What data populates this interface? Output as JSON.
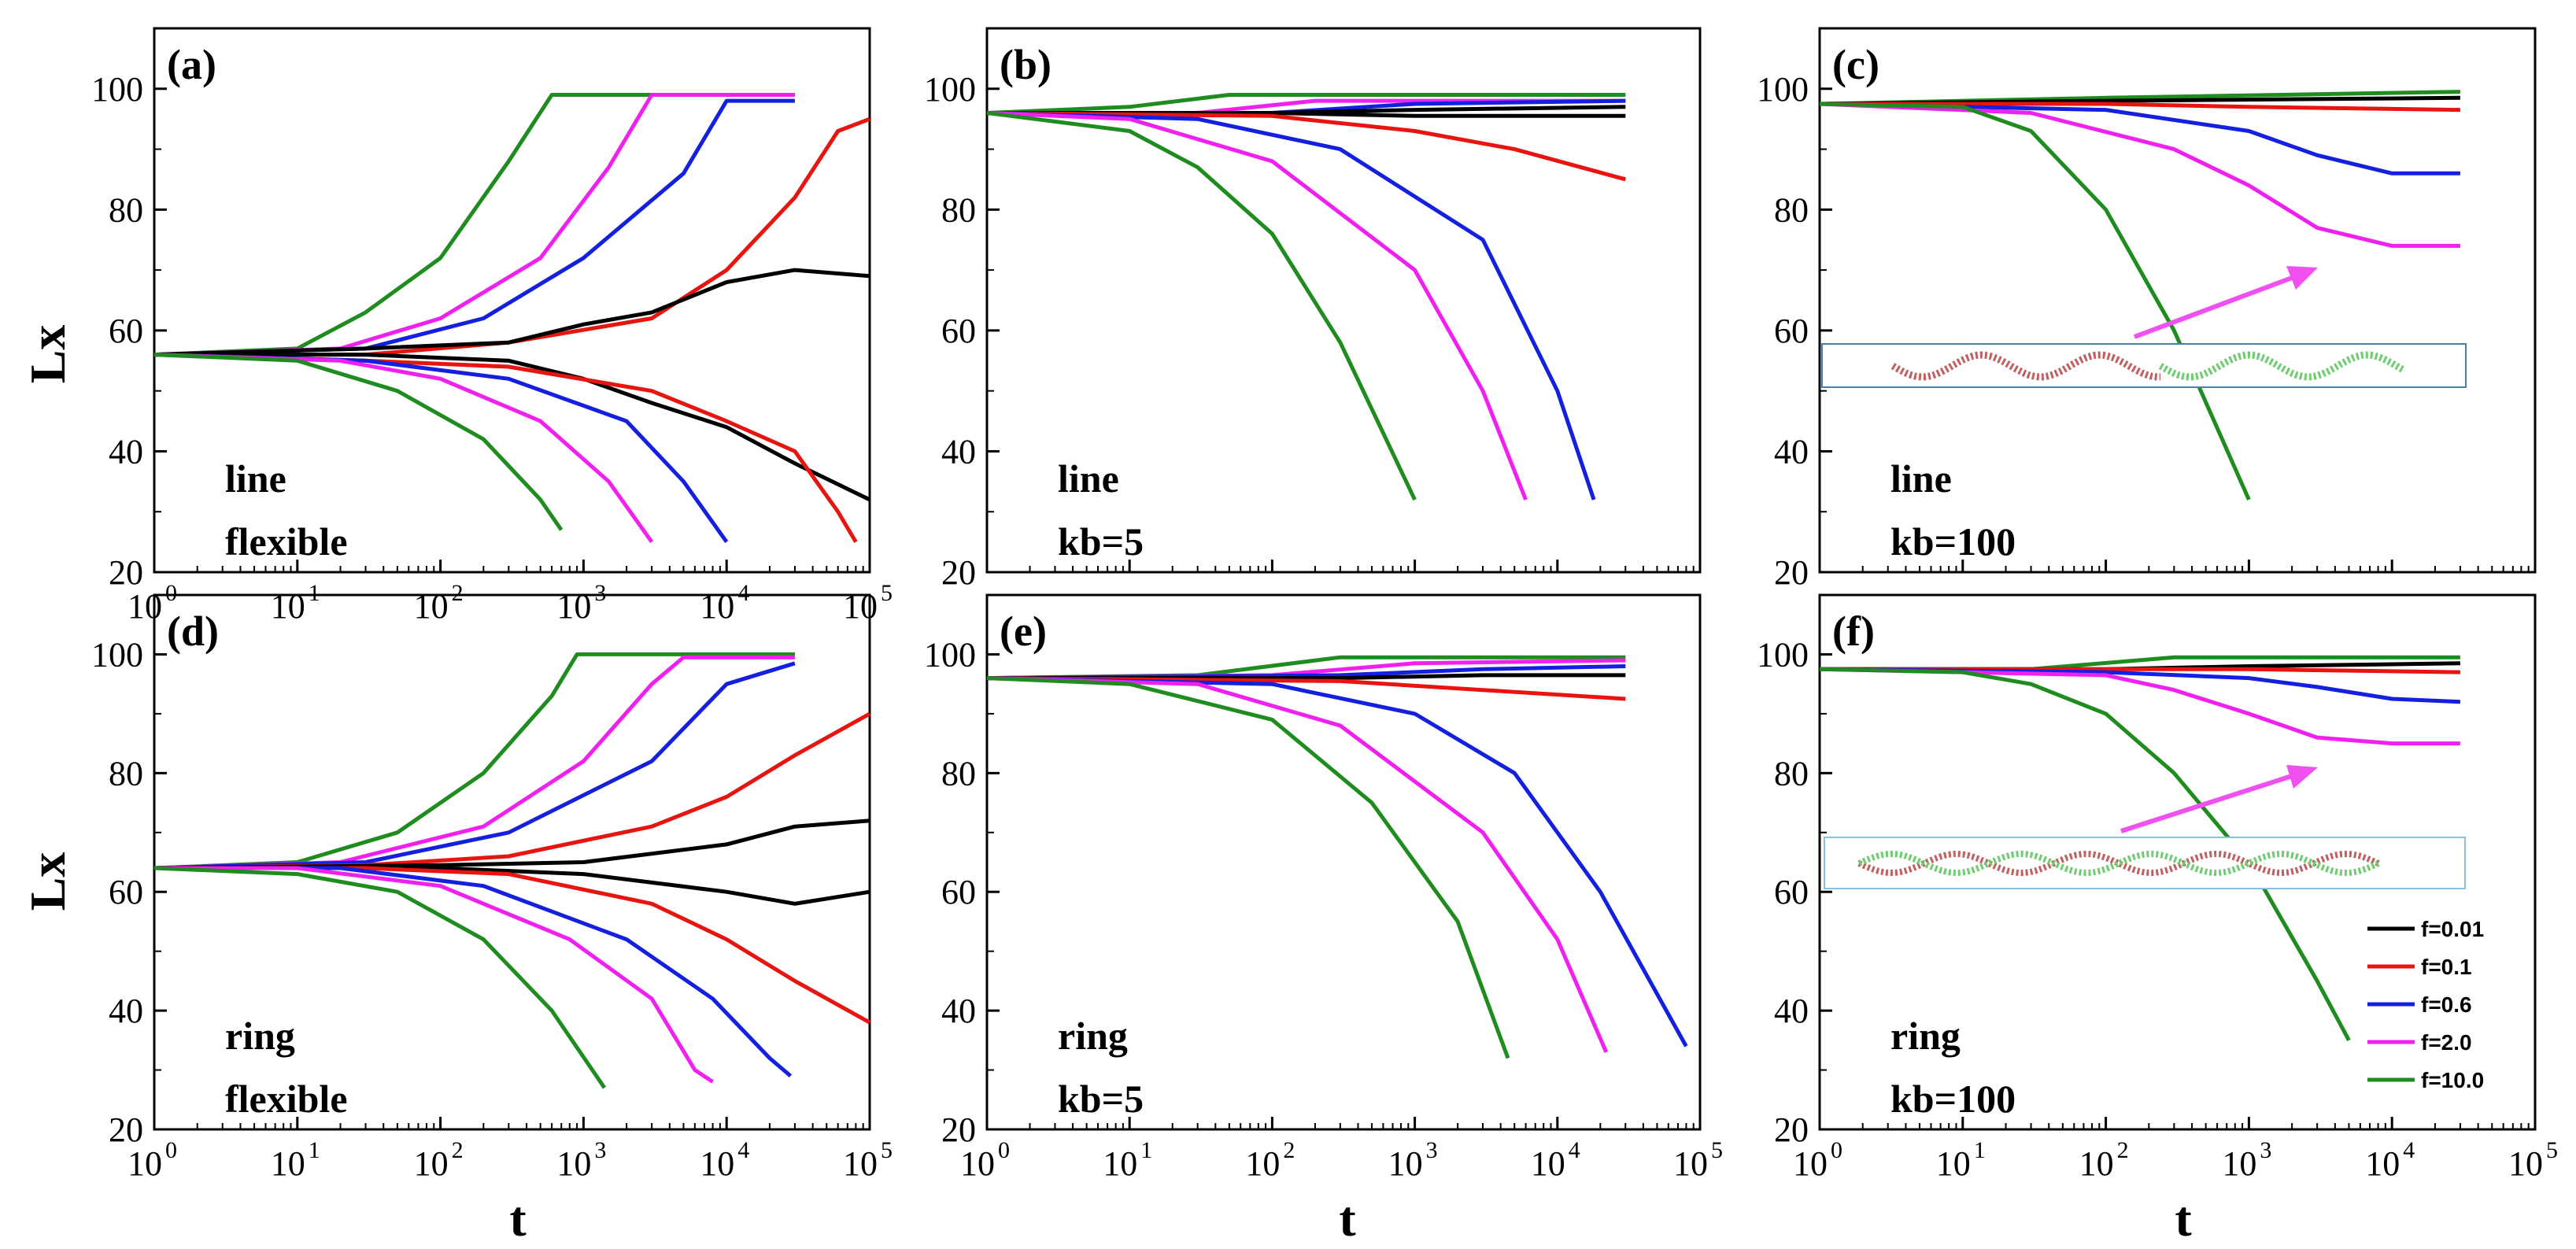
{
  "figure": {
    "y_axis_title": "Lx",
    "x_axis_title": "t",
    "series_colors": {
      "f=0.01": "#000000",
      "f=0.1": "#e8140f",
      "f=0.6": "#1420e0",
      "f=2.0": "#f020f0",
      "f=10.0": "#1f8c1f"
    },
    "legend": {
      "placement": "panel-f-lower-right",
      "entries": [
        {
          "label": "f=0.01",
          "color": "#000000"
        },
        {
          "label": "f=0.1",
          "color": "#e8140f"
        },
        {
          "label": "f=0.6",
          "color": "#1420e0"
        },
        {
          "label": "f=2.0",
          "color": "#f020f0"
        },
        {
          "label": "f=10.0",
          "color": "#1f8c1f"
        }
      ]
    }
  },
  "chart_data": [
    {
      "panel": "a",
      "tag": "(a)",
      "note_lines": [
        "line",
        "flexible"
      ],
      "type": "line",
      "xscale": "log",
      "xlim": [
        1,
        100000
      ],
      "ylim": [
        20,
        110
      ],
      "yticks": [
        20,
        40,
        60,
        80,
        100
      ],
      "xtick_exponents": [
        "0",
        "1",
        "2",
        "3",
        "4",
        "5"
      ],
      "series": [
        {
          "label": "f=10.0",
          "color": "#1f8c1f",
          "x": [
            1,
            10,
            30,
            100,
            300,
            600,
            30000
          ],
          "y": [
            56,
            57,
            63,
            72,
            88,
            99,
            99
          ]
        },
        {
          "label": "f=2.0",
          "color": "#f020f0",
          "x": [
            1,
            20,
            100,
            500,
            1500,
            3000,
            30000
          ],
          "y": [
            56,
            57,
            62,
            72,
            87,
            99,
            99
          ]
        },
        {
          "label": "f=0.6",
          "color": "#1420e0",
          "x": [
            1,
            30,
            200,
            1000,
            5000,
            10000,
            30000
          ],
          "y": [
            56,
            57,
            62,
            72,
            86,
            98,
            98
          ]
        },
        {
          "label": "f=0.1",
          "color": "#e8140f",
          "x": [
            1,
            30,
            300,
            3000,
            10000,
            30000,
            60000,
            100000
          ],
          "y": [
            56,
            56,
            58,
            62,
            70,
            82,
            93,
            95
          ]
        },
        {
          "label": "f=0.01",
          "color": "#000000",
          "x": [
            1,
            30,
            300,
            1000,
            3000,
            10000,
            30000,
            100000
          ],
          "y": [
            56,
            57,
            58,
            61,
            63,
            68,
            70,
            69
          ]
        },
        {
          "label": "f=0.01",
          "color": "#000000",
          "x": [
            1,
            30,
            300,
            1000,
            3000,
            10000,
            30000,
            100000
          ],
          "y": [
            56,
            56,
            55,
            52,
            48,
            44,
            38,
            32
          ]
        },
        {
          "label": "f=0.1",
          "color": "#e8140f",
          "x": [
            1,
            30,
            300,
            3000,
            10000,
            30000,
            60000,
            80000
          ],
          "y": [
            56,
            55,
            54,
            50,
            45,
            40,
            30,
            25
          ]
        },
        {
          "label": "f=0.6",
          "color": "#1420e0",
          "x": [
            1,
            30,
            300,
            2000,
            5000,
            10000
          ],
          "y": [
            56,
            55,
            52,
            45,
            35,
            25
          ]
        },
        {
          "label": "f=2.0",
          "color": "#f020f0",
          "x": [
            1,
            20,
            100,
            500,
            1500,
            3000
          ],
          "y": [
            56,
            55,
            52,
            45,
            35,
            25
          ]
        },
        {
          "label": "f=10.0",
          "color": "#1f8c1f",
          "x": [
            1,
            10,
            50,
            200,
            500,
            700
          ],
          "y": [
            56,
            55,
            50,
            42,
            32,
            27
          ]
        }
      ]
    },
    {
      "panel": "b",
      "tag": "(b)",
      "note_lines": [
        "line",
        "kb=5"
      ],
      "type": "line",
      "xscale": "log",
      "xlim": [
        1,
        100000
      ],
      "ylim": [
        20,
        110
      ],
      "yticks": [
        20,
        40,
        60,
        80,
        100
      ],
      "xtick_exponents": [],
      "series": [
        {
          "label": "f=10.0",
          "color": "#1f8c1f",
          "x": [
            1,
            10,
            50,
            30000
          ],
          "y": [
            96,
            97,
            99,
            99
          ]
        },
        {
          "label": "f=2.0",
          "color": "#f020f0",
          "x": [
            1,
            30,
            200,
            30000
          ],
          "y": [
            96,
            96,
            98,
            98
          ]
        },
        {
          "label": "f=0.6",
          "color": "#1420e0",
          "x": [
            1,
            100,
            1000,
            30000
          ],
          "y": [
            96,
            96,
            97.5,
            98
          ]
        },
        {
          "label": "f=0.01",
          "color": "#000000",
          "x": [
            1,
            100,
            1000,
            30000
          ],
          "y": [
            96,
            96,
            96.5,
            97
          ]
        },
        {
          "label": "f=0.01",
          "color": "#000000",
          "x": [
            1,
            100,
            1000,
            30000
          ],
          "y": [
            96,
            96,
            95.5,
            95.5
          ]
        },
        {
          "label": "f=0.1",
          "color": "#e8140f",
          "x": [
            1,
            100,
            1000,
            5000,
            30000
          ],
          "y": [
            96,
            95.5,
            93,
            90,
            85
          ]
        },
        {
          "label": "f=0.6",
          "color": "#1420e0",
          "x": [
            1,
            30,
            300,
            3000,
            10000,
            18000
          ],
          "y": [
            96,
            95,
            90,
            75,
            50,
            32
          ]
        },
        {
          "label": "f=2.0",
          "color": "#f020f0",
          "x": [
            1,
            10,
            100,
            1000,
            3000,
            6000
          ],
          "y": [
            96,
            95,
            88,
            70,
            50,
            32
          ]
        },
        {
          "label": "f=10.0",
          "color": "#1f8c1f",
          "x": [
            1,
            10,
            30,
            100,
            300,
            1000
          ],
          "y": [
            96,
            93,
            87,
            76,
            58,
            32
          ]
        }
      ]
    },
    {
      "panel": "c",
      "tag": "(c)",
      "note_lines": [
        "line",
        "kb=100"
      ],
      "type": "line",
      "xscale": "log",
      "xlim": [
        1,
        100000
      ],
      "ylim": [
        20,
        110
      ],
      "yticks": [
        20,
        40,
        60,
        80,
        100
      ],
      "xtick_exponents": [],
      "series": [
        {
          "label": "f=10.0",
          "color": "#1f8c1f",
          "x": [
            1,
            100,
            30000
          ],
          "y": [
            97.5,
            98.5,
            99.5
          ]
        },
        {
          "label": "f=0.01",
          "color": "#000000",
          "x": [
            1,
            100,
            30000
          ],
          "y": [
            97.5,
            98,
            98.5
          ]
        },
        {
          "label": "f=0.1",
          "color": "#e8140f",
          "x": [
            1,
            100,
            1000,
            30000
          ],
          "y": [
            97.5,
            97.5,
            97,
            96.5
          ]
        },
        {
          "label": "f=0.6",
          "color": "#1420e0",
          "x": [
            1,
            100,
            1000,
            3000,
            10000,
            30000
          ],
          "y": [
            97.5,
            96.5,
            93,
            89,
            86,
            86
          ]
        },
        {
          "label": "f=2.0",
          "color": "#f020f0",
          "x": [
            1,
            30,
            300,
            1000,
            3000,
            10000,
            30000
          ],
          "y": [
            97.5,
            96,
            90,
            84,
            77,
            74,
            74
          ]
        },
        {
          "label": "f=10.0",
          "color": "#1f8c1f",
          "x": [
            1,
            10,
            30,
            100,
            300,
            1000
          ],
          "y": [
            97.5,
            97,
            93,
            80,
            60,
            32
          ]
        }
      ]
    },
    {
      "panel": "d",
      "tag": "(d)",
      "note_lines": [
        "ring",
        "flexible"
      ],
      "type": "line",
      "xscale": "log",
      "xlim": [
        1,
        100000
      ],
      "ylim": [
        20,
        110
      ],
      "yticks": [
        20,
        40,
        60,
        80,
        100
      ],
      "xtick_exponents": [
        "0",
        "1",
        "2",
        "3",
        "4",
        "5"
      ],
      "series": [
        {
          "label": "f=10.0",
          "color": "#1f8c1f",
          "x": [
            1,
            10,
            50,
            200,
            600,
            900,
            30000
          ],
          "y": [
            64,
            65,
            70,
            80,
            93,
            100,
            100
          ]
        },
        {
          "label": "f=2.0",
          "color": "#f020f0",
          "x": [
            1,
            20,
            200,
            1000,
            3000,
            5000,
            30000
          ],
          "y": [
            64,
            65,
            71,
            82,
            95,
            99.5,
            99.5
          ]
        },
        {
          "label": "f=0.6",
          "color": "#1420e0",
          "x": [
            1,
            30,
            300,
            3000,
            10000,
            30000
          ],
          "y": [
            64,
            65,
            70,
            82,
            95,
            98.5
          ]
        },
        {
          "label": "f=0.1",
          "color": "#e8140f",
          "x": [
            1,
            30,
            300,
            3000,
            10000,
            30000,
            100000
          ],
          "y": [
            64,
            64.5,
            66,
            71,
            76,
            83,
            90
          ]
        },
        {
          "label": "f=0.01",
          "color": "#000000",
          "x": [
            1,
            100,
            1000,
            10000,
            30000,
            100000
          ],
          "y": [
            64,
            64.5,
            65,
            68,
            71,
            72
          ]
        },
        {
          "label": "f=0.01",
          "color": "#000000",
          "x": [
            1,
            100,
            1000,
            10000,
            30000,
            100000
          ],
          "y": [
            64,
            64,
            63,
            60,
            58,
            60
          ]
        },
        {
          "label": "f=0.1",
          "color": "#e8140f",
          "x": [
            1,
            30,
            300,
            3000,
            10000,
            30000,
            100000
          ],
          "y": [
            64,
            64,
            63,
            58,
            52,
            45,
            38
          ]
        },
        {
          "label": "f=0.6",
          "color": "#1420e0",
          "x": [
            1,
            20,
            200,
            2000,
            8000,
            20000,
            28000
          ],
          "y": [
            64,
            64,
            61,
            52,
            42,
            32,
            29
          ]
        },
        {
          "label": "f=2.0",
          "color": "#f020f0",
          "x": [
            1,
            10,
            100,
            800,
            3000,
            6000,
            8000
          ],
          "y": [
            64,
            64,
            61,
            52,
            42,
            30,
            28
          ]
        },
        {
          "label": "f=10.0",
          "color": "#1f8c1f",
          "x": [
            1,
            10,
            50,
            200,
            600,
            1400
          ],
          "y": [
            64,
            63,
            60,
            52,
            40,
            27
          ]
        }
      ]
    },
    {
      "panel": "e",
      "tag": "(e)",
      "note_lines": [
        "ring",
        "kb=5"
      ],
      "type": "line",
      "xscale": "log",
      "xlim": [
        1,
        100000
      ],
      "ylim": [
        20,
        110
      ],
      "yticks": [
        20,
        40,
        60,
        80,
        100
      ],
      "xtick_exponents": [
        "0",
        "1",
        "2",
        "3",
        "4",
        "5"
      ],
      "series": [
        {
          "label": "f=10.0",
          "color": "#1f8c1f",
          "x": [
            1,
            30,
            300,
            30000
          ],
          "y": [
            96,
            96.5,
            99.5,
            99.5
          ]
        },
        {
          "label": "f=2.0",
          "color": "#f020f0",
          "x": [
            1,
            100,
            1000,
            30000
          ],
          "y": [
            96,
            96.5,
            98.5,
            99
          ]
        },
        {
          "label": "f=0.6",
          "color": "#1420e0",
          "x": [
            1,
            300,
            3000,
            30000
          ],
          "y": [
            96,
            96.5,
            97.5,
            98
          ]
        },
        {
          "label": "f=0.01",
          "color": "#000000",
          "x": [
            1,
            300,
            3000,
            30000
          ],
          "y": [
            96,
            96,
            96.5,
            96.5
          ]
        },
        {
          "label": "f=0.1",
          "color": "#e8140f",
          "x": [
            1,
            300,
            3000,
            30000
          ],
          "y": [
            96,
            95.5,
            94,
            92.5
          ]
        },
        {
          "label": "f=0.6",
          "color": "#1420e0",
          "x": [
            1,
            100,
            1000,
            5000,
            20000,
            80000
          ],
          "y": [
            96,
            95,
            90,
            80,
            60,
            34
          ]
        },
        {
          "label": "f=2.0",
          "color": "#f020f0",
          "x": [
            1,
            30,
            300,
            3000,
            10000,
            22000
          ],
          "y": [
            96,
            95,
            88,
            70,
            52,
            33
          ]
        },
        {
          "label": "f=10.0",
          "color": "#1f8c1f",
          "x": [
            1,
            10,
            100,
            500,
            2000,
            4500
          ],
          "y": [
            96,
            95,
            89,
            75,
            55,
            32
          ]
        }
      ]
    },
    {
      "panel": "f",
      "tag": "(f)",
      "note_lines": [
        "ring",
        "kb=100"
      ],
      "type": "line",
      "xscale": "log",
      "xlim": [
        1,
        100000
      ],
      "ylim": [
        20,
        110
      ],
      "yticks": [
        20,
        40,
        60,
        80,
        100
      ],
      "xtick_exponents": [
        "0",
        "1",
        "2",
        "3",
        "4",
        "5"
      ],
      "series": [
        {
          "label": "f=10.0",
          "color": "#1f8c1f",
          "x": [
            1,
            30,
            300,
            30000
          ],
          "y": [
            97.5,
            97.5,
            99.5,
            99.5
          ]
        },
        {
          "label": "f=0.01",
          "color": "#000000",
          "x": [
            1,
            100,
            1000,
            30000
          ],
          "y": [
            97.5,
            97.5,
            98,
            98.5
          ]
        },
        {
          "label": "f=0.1",
          "color": "#e8140f",
          "x": [
            1,
            100,
            1000,
            30000
          ],
          "y": [
            97.5,
            97.5,
            97.5,
            97
          ]
        },
        {
          "label": "f=0.6",
          "color": "#1420e0",
          "x": [
            1,
            100,
            1000,
            3000,
            10000,
            30000
          ],
          "y": [
            97.5,
            97,
            96,
            94.5,
            92.5,
            92
          ]
        },
        {
          "label": "f=2.0",
          "color": "#f020f0",
          "x": [
            1,
            100,
            300,
            1000,
            3000,
            10000,
            30000
          ],
          "y": [
            97.5,
            96.5,
            94,
            90,
            86,
            85,
            85
          ]
        },
        {
          "label": "f=10.0",
          "color": "#1f8c1f",
          "x": [
            1,
            10,
            30,
            100,
            300,
            1000,
            3000,
            5000
          ],
          "y": [
            97.5,
            97,
            95,
            90,
            80,
            65,
            45,
            35
          ]
        }
      ]
    }
  ]
}
